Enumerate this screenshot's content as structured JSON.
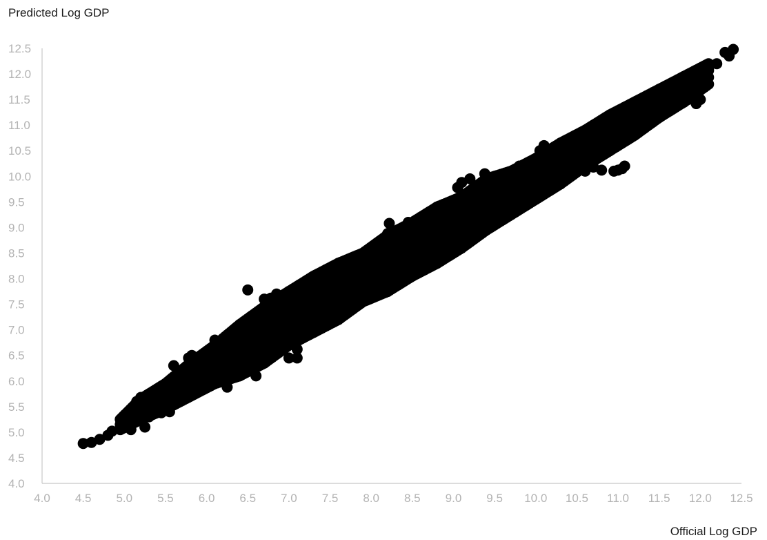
{
  "chart_data": {
    "type": "scatter",
    "xlabel": "Official Log GDP",
    "ylabel": "Predicted Log GDP",
    "xlim": [
      4.0,
      12.5
    ],
    "ylim": [
      4.0,
      12.5
    ],
    "x_ticks": [
      "4.0",
      "4.5",
      "5.0",
      "5.5",
      "6.0",
      "6.5",
      "7.0",
      "7.5",
      "8.0",
      "8.5",
      "9.0",
      "9.5",
      "10.0",
      "10.5",
      "11.0",
      "11.5",
      "12.0",
      "12.5"
    ],
    "y_ticks": [
      "4.0",
      "4.5",
      "5.0",
      "5.5",
      "6.0",
      "6.5",
      "7.0",
      "7.5",
      "8.0",
      "8.5",
      "9.0",
      "9.5",
      "10.0",
      "10.5",
      "11.0",
      "11.5",
      "12.0",
      "12.5"
    ],
    "grid": false,
    "point_color": "#000000",
    "points": [
      [
        4.5,
        4.78
      ],
      [
        4.6,
        4.8
      ],
      [
        4.7,
        4.86
      ],
      [
        4.8,
        4.94
      ],
      [
        4.85,
        5.02
      ],
      [
        5.08,
        5.05
      ],
      [
        5.1,
        5.2
      ],
      [
        5.12,
        5.45
      ],
      [
        5.15,
        5.6
      ],
      [
        5.2,
        5.68
      ],
      [
        5.25,
        5.1
      ],
      [
        5.3,
        5.3
      ],
      [
        5.35,
        5.5
      ],
      [
        5.45,
        5.38
      ],
      [
        5.55,
        5.4
      ],
      [
        5.6,
        6.3
      ],
      [
        5.78,
        6.45
      ],
      [
        5.82,
        6.5
      ],
      [
        5.9,
        6.0
      ],
      [
        6.0,
        6.55
      ],
      [
        6.1,
        6.8
      ],
      [
        6.25,
        5.88
      ],
      [
        6.45,
        7.1
      ],
      [
        6.5,
        7.78
      ],
      [
        6.6,
        6.1
      ],
      [
        6.7,
        7.6
      ],
      [
        6.78,
        7.62
      ],
      [
        6.85,
        7.7
      ],
      [
        7.0,
        6.45
      ],
      [
        7.05,
        7.8
      ],
      [
        7.1,
        6.45
      ],
      [
        7.1,
        6.62
      ],
      [
        7.2,
        7.9
      ],
      [
        7.4,
        8.1
      ],
      [
        7.55,
        8.22
      ],
      [
        7.7,
        8.3
      ],
      [
        8.0,
        8.4
      ],
      [
        8.05,
        7.7
      ],
      [
        8.2,
        8.88
      ],
      [
        8.22,
        9.08
      ],
      [
        8.35,
        8.9
      ],
      [
        8.45,
        9.1
      ],
      [
        8.6,
        9.2
      ],
      [
        8.6,
        8.3
      ],
      [
        8.85,
        8.6
      ],
      [
        9.0,
        8.7
      ],
      [
        9.05,
        9.78
      ],
      [
        9.1,
        9.88
      ],
      [
        9.2,
        9.95
      ],
      [
        9.38,
        10.05
      ],
      [
        9.45,
        9.3
      ],
      [
        9.65,
        9.4
      ],
      [
        9.8,
        10.2
      ],
      [
        9.9,
        9.6
      ],
      [
        10.0,
        9.7
      ],
      [
        10.05,
        10.5
      ],
      [
        10.1,
        10.6
      ],
      [
        10.18,
        9.8
      ],
      [
        10.2,
        10.45
      ],
      [
        10.35,
        10.1
      ],
      [
        10.4,
        10.62
      ],
      [
        10.5,
        10.7
      ],
      [
        10.6,
        10.1
      ],
      [
        10.55,
        10.25
      ],
      [
        10.62,
        10.9
      ],
      [
        10.65,
        10.2
      ],
      [
        10.7,
        10.18
      ],
      [
        10.8,
        10.12
      ],
      [
        10.85,
        11.1
      ],
      [
        10.9,
        10.85
      ],
      [
        10.95,
        10.1
      ],
      [
        11.0,
        10.12
      ],
      [
        11.05,
        10.15
      ],
      [
        11.08,
        10.2
      ],
      [
        11.12,
        11.3
      ],
      [
        11.2,
        11.0
      ],
      [
        11.3,
        11.3
      ],
      [
        11.5,
        11.6
      ],
      [
        11.6,
        11.5
      ],
      [
        11.7,
        11.7
      ],
      [
        11.8,
        11.45
      ],
      [
        11.85,
        11.5
      ],
      [
        11.95,
        11.42
      ],
      [
        12.0,
        11.5
      ],
      [
        12.05,
        12.0
      ],
      [
        12.1,
        12.1
      ],
      [
        12.2,
        12.2
      ],
      [
        12.3,
        12.42
      ],
      [
        12.35,
        12.35
      ],
      [
        12.4,
        12.48
      ]
    ]
  }
}
